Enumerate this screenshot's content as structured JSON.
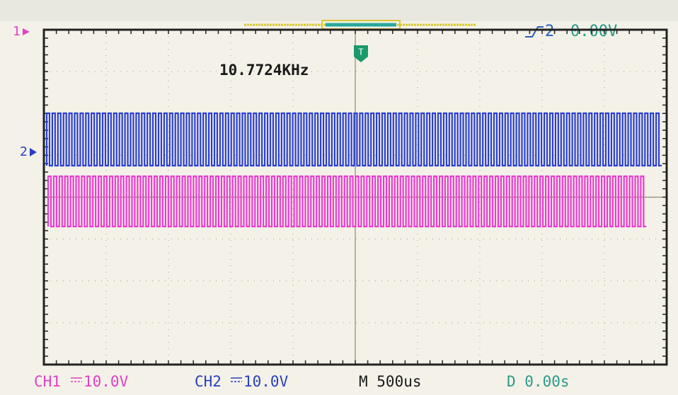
{
  "screen": {
    "markers": {
      "ch1": "1",
      "ch2": "2",
      "trigger": "T"
    },
    "measurement": "10.7724KHz",
    "trigger_status": {
      "channel": "2",
      "level": "0.00V"
    },
    "status_bar": {
      "ch1_label": "CH1",
      "ch1_scale": "10.0V",
      "ch2_label": "CH2",
      "ch2_scale": "10.0V",
      "timebase": "M 500us",
      "delay": "D 0.00s"
    }
  }
}
